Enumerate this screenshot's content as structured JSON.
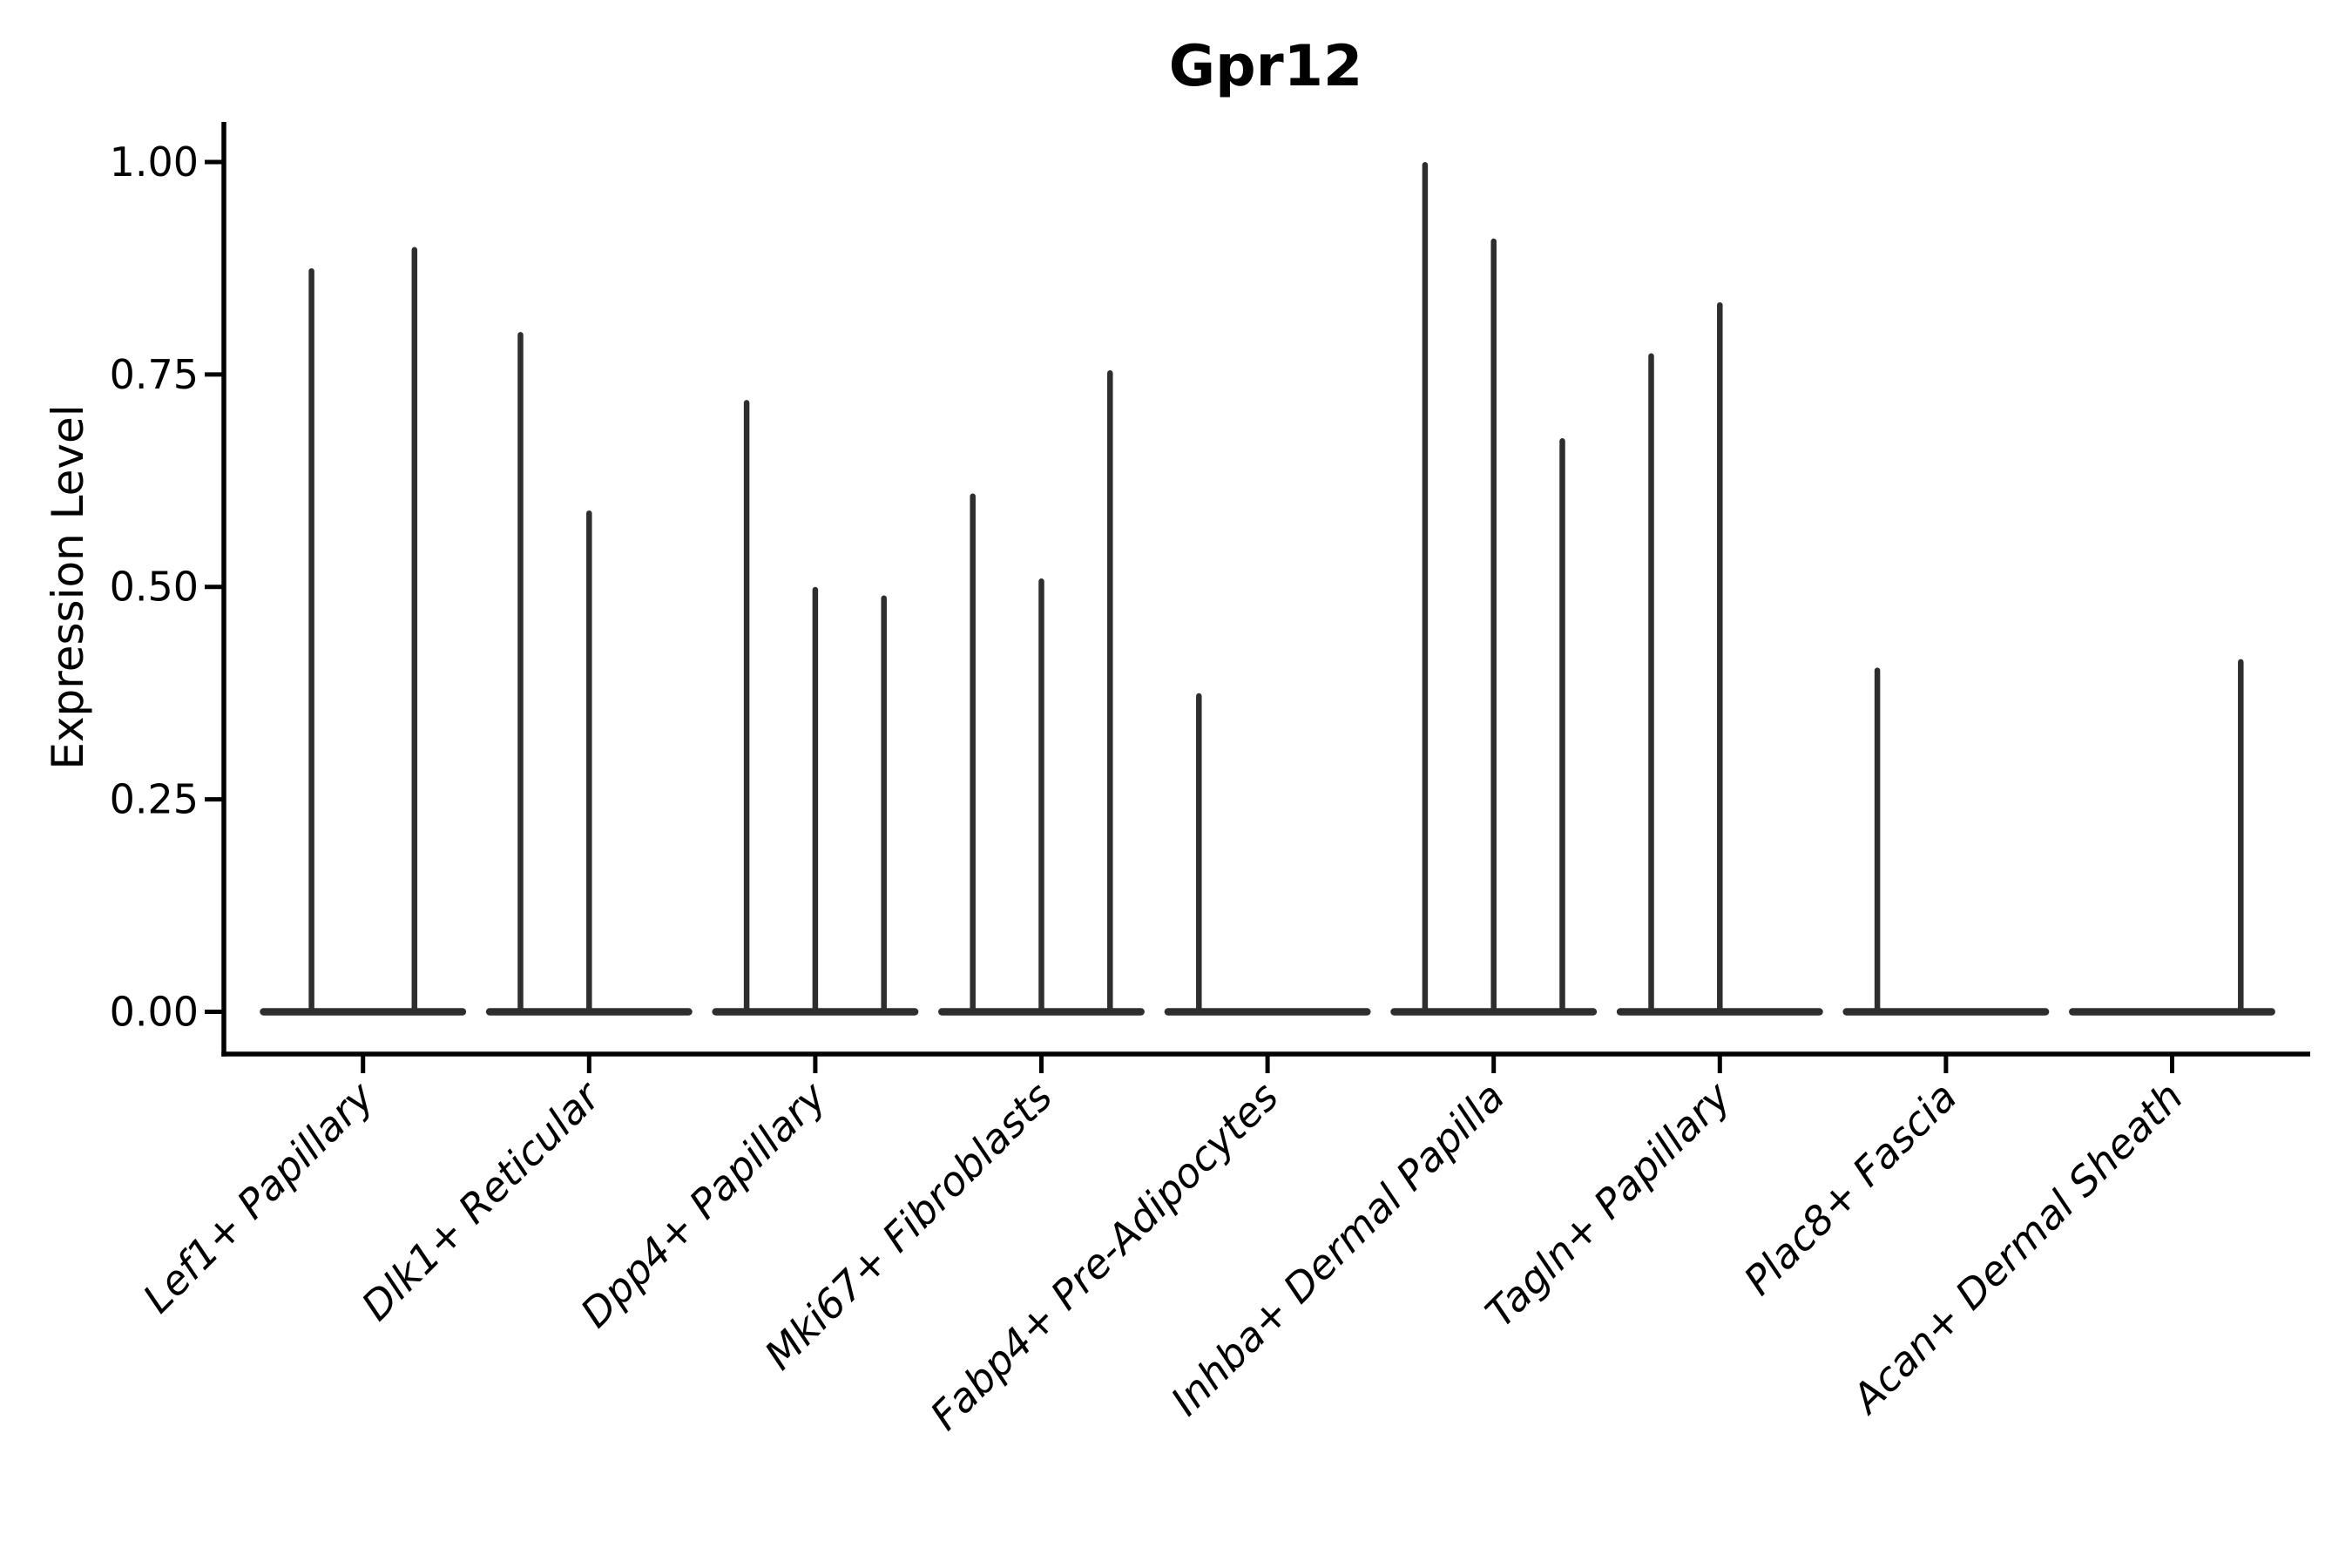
{
  "page": {
    "background": "#ffffff"
  },
  "chart_data": {
    "type": "violin",
    "title": "Gpr12",
    "ylabel": "Expression Level",
    "xlabel": "",
    "ylim": [
      0,
      1.05
    ],
    "ytick_values": [
      0.0,
      0.25,
      0.5,
      0.75,
      1.0
    ],
    "ytick_labels": [
      "0.00",
      "0.25",
      "0.50",
      "0.75",
      "1.00"
    ],
    "x_tick_rotation": 45,
    "grid": false,
    "legend": "none",
    "categories": [
      "Lef1+ Papillary",
      "Dlk1+ Reticular",
      "Dpp4+ Papillary",
      "Mki67+ Fibroblasts",
      "Fabp4+ Pre-Adipocytes",
      "Inhba+ Dermal Papilla",
      "Tagln+ Papillary",
      "Plac8+ Fascia",
      "Acan+ Dermal Sheath"
    ],
    "violins": [
      {
        "category": "Lef1+ Papillary",
        "group_maxima": [
          0.875,
          0.9
        ]
      },
      {
        "category": "Dlk1+ Reticular",
        "group_maxima": [
          0.8,
          0.59,
          0
        ]
      },
      {
        "category": "Dpp4+ Papillary",
        "group_maxima": [
          0.72,
          0.5,
          0.49
        ]
      },
      {
        "category": "Mki67+ Fibroblasts",
        "group_maxima": [
          0.61,
          0.51,
          0.755
        ]
      },
      {
        "category": "Fabp4+ Pre-Adipocytes",
        "group_maxima": [
          0.375,
          0,
          0
        ]
      },
      {
        "category": "Inhba+ Dermal Papilla",
        "group_maxima": [
          1.0,
          0.91,
          0.675
        ]
      },
      {
        "category": "Tagln+ Papillary",
        "group_maxima": [
          0.775,
          0.835,
          0
        ]
      },
      {
        "category": "Plac8+ Fascia",
        "group_maxima": [
          0.405,
          0,
          0
        ]
      },
      {
        "category": "Acan+ Dermal Sheath",
        "group_maxima": [
          0,
          0,
          0.415
        ]
      }
    ],
    "colors": {
      "violin": "#2e2e2e",
      "axis": "#000000",
      "text": "#000000",
      "background": "#ffffff"
    },
    "note": "Sparse expression violins: each group renders as a flat bar at 0 with a thin spike up to its maximum value"
  }
}
